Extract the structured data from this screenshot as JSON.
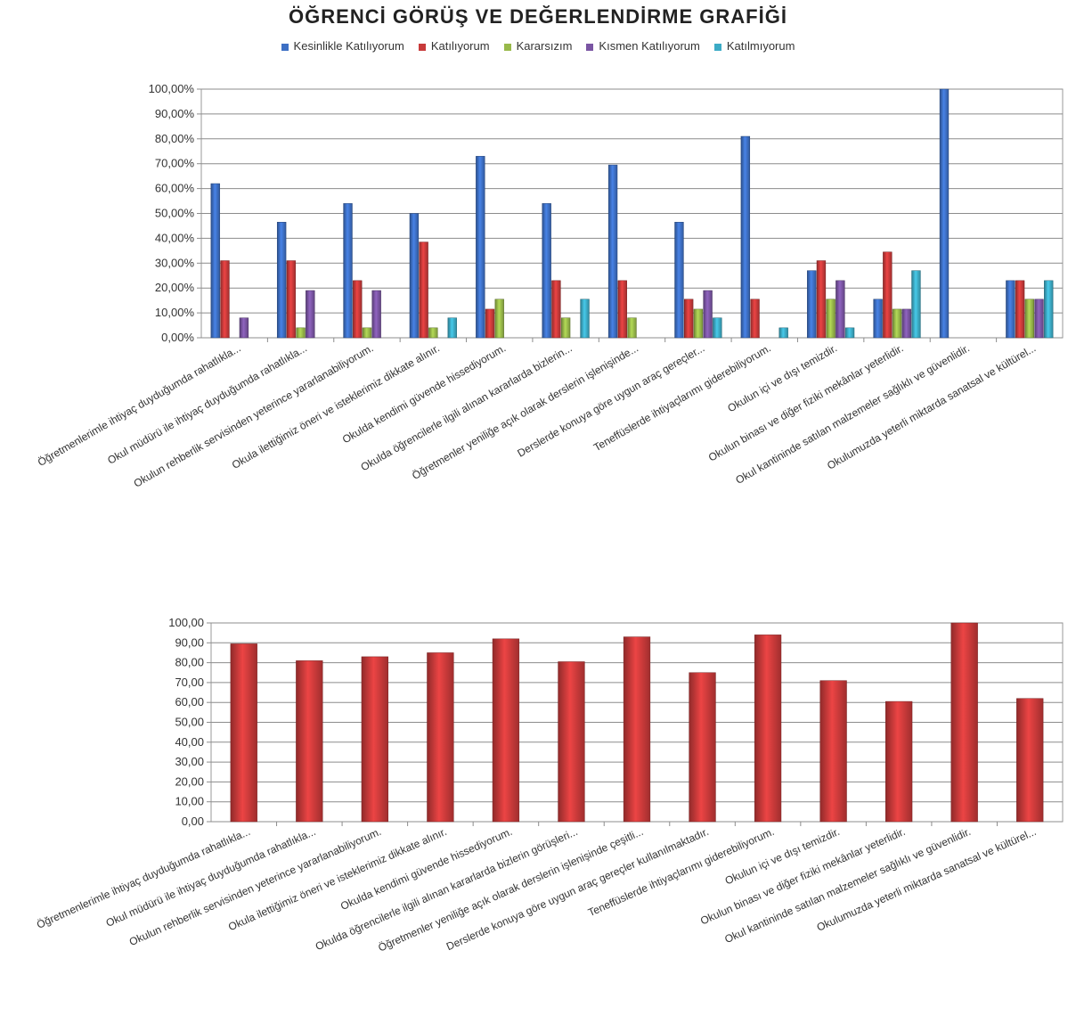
{
  "title": "ÖĞRENCİ GÖRÜŞ VE DEĞERLENDİRME GRAFİĞİ",
  "chart_data": [
    {
      "type": "bar",
      "legend_position": "top",
      "grid": true,
      "ylim": [
        0,
        100
      ],
      "y_ticks": [
        "0,00%",
        "10,00%",
        "20,00%",
        "30,00%",
        "40,00%",
        "50,00%",
        "60,00%",
        "70,00%",
        "80,00%",
        "90,00%",
        "100,00%"
      ],
      "categories": [
        "Öğretmenlerimle ihtiyaç duyduğumda rahatlıkla...",
        "Okul müdürü ile ihtiyaç duyduğumda rahatlıkla...",
        "Okulun rehberlik servisinden yeterince yararlanabiliyorum.",
        "Okula ilettiğimiz öneri ve isteklerimiz dikkate alınır.",
        "Okulda kendimi güvende hissediyorum.",
        "Okulda öğrencilerle ilgili alınan kararlarda bizlerin...",
        "Öğretmenler yeniliğe açık olarak derslerin işlenişinde...",
        "Derslerde konuya göre uygun araç gereçler...",
        "Teneffüslerde ihtiyaçlarımı giderebiliyorum.",
        "Okulun içi ve dışı temizdir.",
        "Okulun binası ve diğer fiziki mekânlar yeterlidir.",
        "Okul kantininde satılan malzemeler sağlıklı ve güvenlidir.",
        "Okulumuzda yeterli miktarda sanatsal ve kültürel..."
      ],
      "series": [
        {
          "name": "Kesinlikle Katılıyorum",
          "color": "#3d6fc4",
          "values": [
            62,
            46.5,
            54,
            50,
            73,
            54,
            69.5,
            46.5,
            81,
            27,
            15.5,
            100,
            23
          ]
        },
        {
          "name": "Katılıyorum",
          "color": "#c83a3a",
          "values": [
            31,
            31,
            23,
            38.5,
            11.5,
            23,
            23,
            15.5,
            15.5,
            31,
            34.5,
            0,
            23
          ]
        },
        {
          "name": "Kararsızım",
          "color": "#98b94a",
          "values": [
            0,
            4,
            4,
            4,
            15.5,
            8,
            8,
            11.5,
            0,
            15.5,
            11.5,
            0,
            15.5
          ]
        },
        {
          "name": "Kısmen Katılıyorum",
          "color": "#7a55a3",
          "values": [
            8,
            19,
            19,
            0,
            0,
            0,
            0,
            19,
            0,
            23,
            11.5,
            0,
            15.5
          ]
        },
        {
          "name": "Katılmıyorum",
          "color": "#3cabc6",
          "values": [
            0,
            0,
            0,
            8,
            0,
            15.5,
            0,
            8,
            4,
            4,
            27,
            0,
            23
          ]
        }
      ]
    },
    {
      "type": "bar",
      "grid": true,
      "ylim": [
        0,
        100
      ],
      "y_ticks": [
        "0,00",
        "10,00",
        "20,00",
        "30,00",
        "40,00",
        "50,00",
        "60,00",
        "70,00",
        "80,00",
        "90,00",
        "100,00"
      ],
      "color": "#c83a3a",
      "categories": [
        "Öğretmenlerimle ihtiyaç duyduğumda rahatlıkla...",
        "Okul müdürü ile ihtiyaç duyduğumda rahatlıkla...",
        "Okulun rehberlik servisinden yeterince yararlanabiliyorum.",
        "Okula ilettiğimiz öneri ve isteklerimiz dikkate alınır.",
        "Okulda kendimi güvende hissediyorum.",
        "Okulda öğrencilerle ilgili alınan kararlarda bizlerin görüşleri...",
        "Öğretmenler yeniliğe açık olarak derslerin işlenişinde çeşitli...",
        "Derslerde konuya göre uygun araç gereçler kullanılmaktadır.",
        "Teneffüslerde ihtiyaçlarımı giderebiliyorum.",
        "Okulun içi ve dışı temizdir.",
        "Okulun binası ve diğer fiziki mekânlar yeterlidir.",
        "Okul kantininde satılan malzemeler sağlıklı ve güvenlidir.",
        "Okulumuzda yeterli miktarda sanatsal ve kültürel..."
      ],
      "values": [
        89.5,
        81,
        83,
        85,
        92,
        80.5,
        93,
        75,
        94,
        71,
        60.5,
        100,
        62
      ]
    }
  ]
}
